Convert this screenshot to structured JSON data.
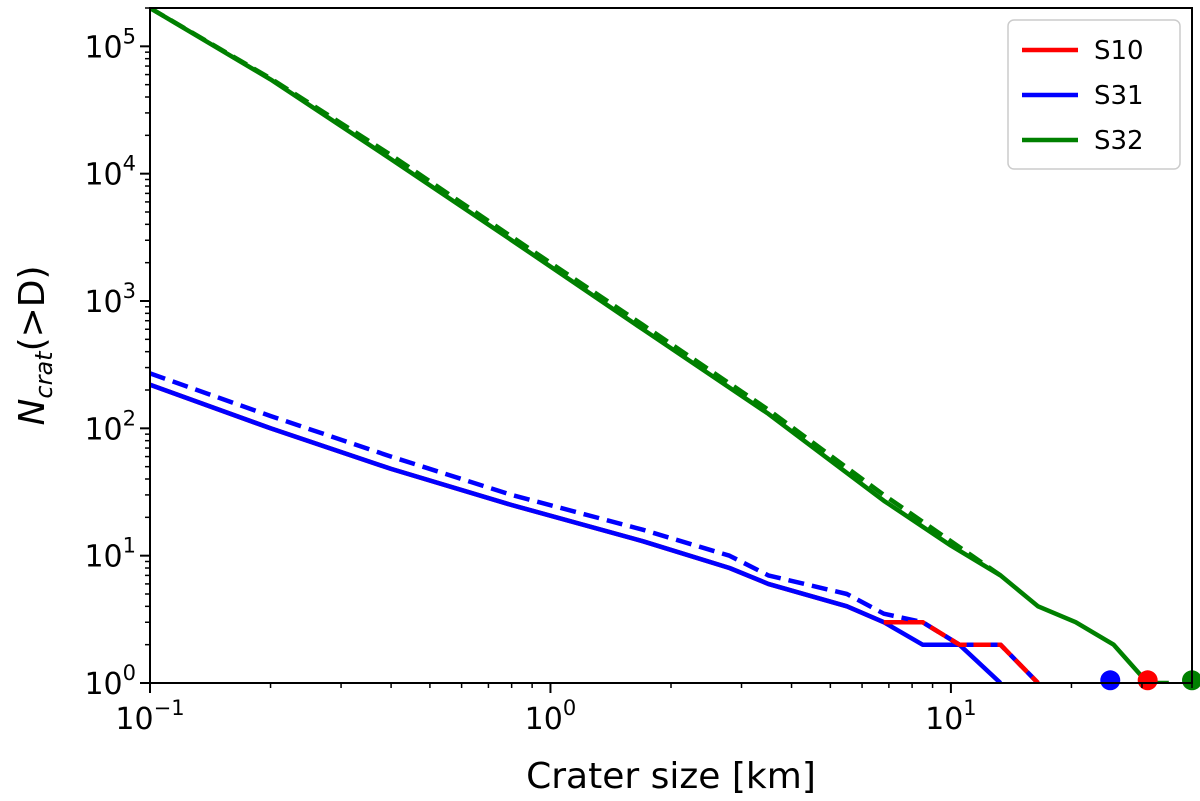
{
  "chart_data": {
    "type": "line",
    "xlabel": "Crater size [km]",
    "ylabel_main": "N",
    "ylabel_sub": "crat",
    "ylabel_rest": "(>D)",
    "xscale": "log",
    "yscale": "log",
    "xlim": [
      0.1,
      40
    ],
    "ylim": [
      1,
      200000
    ],
    "xticks": [
      {
        "value": 0.1,
        "base": "10",
        "exp": "−1"
      },
      {
        "value": 1,
        "base": "10",
        "exp": "0"
      },
      {
        "value": 10,
        "base": "10",
        "exp": "1"
      }
    ],
    "yticks": [
      {
        "value": 1,
        "base": "10",
        "exp": "0"
      },
      {
        "value": 10,
        "base": "10",
        "exp": "1"
      },
      {
        "value": 100,
        "base": "10",
        "exp": "2"
      },
      {
        "value": 1000,
        "base": "10",
        "exp": "3"
      },
      {
        "value": 10000,
        "base": "10",
        "exp": "4"
      },
      {
        "value": 100000,
        "base": "10",
        "exp": "5"
      }
    ],
    "grid": false,
    "legend_position": "top-right",
    "series": [
      {
        "name": "S10",
        "color": "#ff0000",
        "dash": false,
        "x": [
          0.1,
          0.2,
          0.4,
          0.8,
          1.7,
          2.8,
          3.5,
          5.5,
          6.8,
          8.5,
          10.5,
          13.3,
          16.5
        ],
        "y": [
          220,
          100,
          48,
          25,
          13,
          8,
          6,
          4,
          3,
          3,
          2,
          2,
          1
        ],
        "marker": {
          "x": 31,
          "y": 1.05
        }
      },
      {
        "name": "S31",
        "color": "#0000ff",
        "dash": false,
        "x": [
          0.1,
          0.2,
          0.4,
          0.8,
          1.7,
          2.8,
          3.5,
          5.5,
          6.8,
          8.5,
          10.5,
          13.3
        ],
        "y": [
          220,
          100,
          48,
          25,
          13,
          8,
          6,
          4,
          3,
          2,
          2,
          1
        ],
        "marker": {
          "x": 25,
          "y": 1.05
        }
      },
      {
        "name": "S31 dashed",
        "color": "#0000ff",
        "dash": true,
        "legend": false,
        "x": [
          0.1,
          0.2,
          0.4,
          0.8,
          1.7,
          2.8,
          3.5,
          5.5,
          6.8,
          8.5,
          10.5,
          13.3,
          16.5
        ],
        "y": [
          270,
          125,
          60,
          30,
          16,
          10,
          7,
          5,
          3.5,
          3,
          2,
          2,
          1
        ]
      },
      {
        "name": "S10 dashed",
        "color": "#ff0000",
        "dash": true,
        "legend": false,
        "x": [
          6.8,
          8.5,
          10.5,
          13.3,
          16.5
        ],
        "y": [
          3,
          3,
          2,
          2,
          1
        ]
      },
      {
        "name": "S32",
        "color": "#008000",
        "dash": false,
        "x": [
          0.1,
          0.2,
          0.4,
          0.8,
          1.7,
          3.5,
          6.8,
          10,
          13.3,
          16.5,
          20.5,
          25.5,
          31,
          35
        ],
        "y": [
          200000,
          55000,
          13000,
          3000,
          600,
          130,
          27,
          12,
          7,
          4,
          3,
          2,
          1,
          1
        ],
        "marker": {
          "x": 40,
          "y": 1.05
        }
      },
      {
        "name": "S32 dashed",
        "color": "#008000",
        "dash": true,
        "legend": false,
        "x": [
          0.1,
          0.2,
          0.4,
          0.8,
          1.7,
          3.5,
          6.8,
          10,
          13.3
        ],
        "y": [
          200000,
          56000,
          14000,
          3200,
          650,
          140,
          30,
          13,
          7
        ]
      }
    ]
  }
}
